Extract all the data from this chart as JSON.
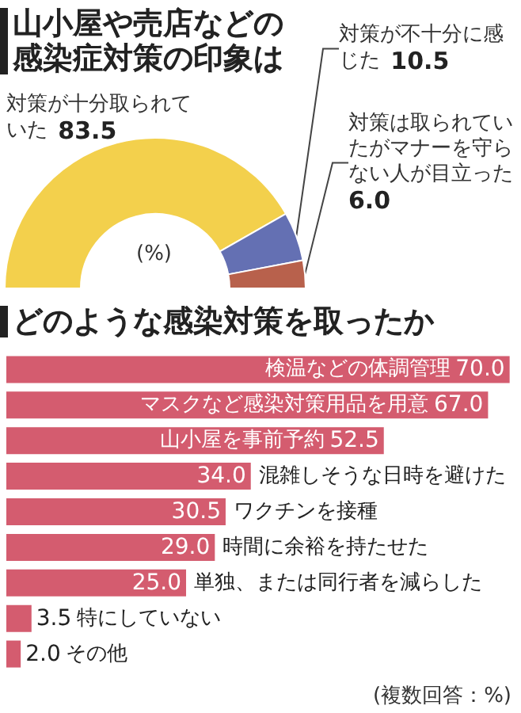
{
  "chart_data": [
    {
      "type": "donut",
      "title": "山小屋や売店などの感染症対策の印象は",
      "categories": [
        "対策が十分取られていた",
        "対策が不十分に感じた",
        "対策は取られていたがマナーを守らない人が目立った"
      ],
      "values": [
        83.5,
        10.5,
        6.0
      ],
      "value_labels": [
        "83.5",
        "10.5",
        "6.0"
      ],
      "colors": [
        "#f3d04c",
        "#6470b3",
        "#b8614c"
      ],
      "annotations": [
        "(%)"
      ]
    },
    {
      "type": "bar",
      "orientation": "horizontal",
      "title": "どのような感染対策を取ったか",
      "categories": [
        "検温などの体調管理",
        "マスクなど感染対策用品を用意",
        "山小屋を事前予約",
        "混雑しそうな日時を避けた",
        "ワクチンを接種",
        "時間に余裕を持たせた",
        "単独、または同行者を減らした",
        "特にしていない",
        "その他"
      ],
      "values": [
        70.0,
        67.0,
        52.5,
        34.0,
        30.5,
        29.0,
        25.0,
        3.5,
        2.0
      ],
      "value_labels": [
        "70.0",
        "67.0",
        "52.5",
        "34.0",
        "30.5",
        "29.0",
        "25.0",
        "3.5",
        "2.0"
      ],
      "color": "#d45c6f",
      "annotations": [
        "(複数回答：%)"
      ]
    }
  ]
}
